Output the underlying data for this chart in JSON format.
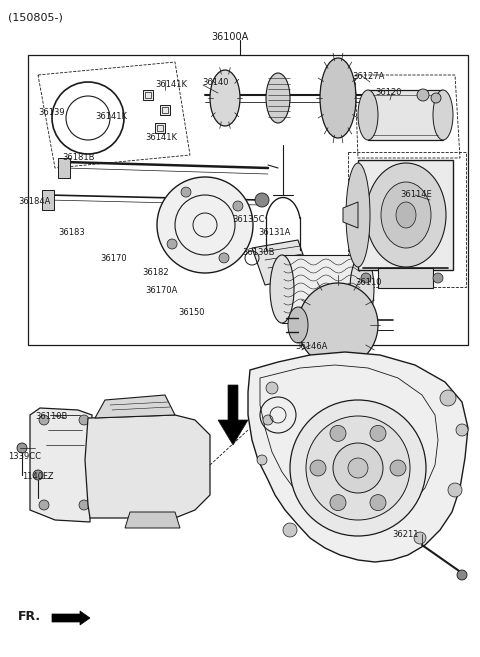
{
  "bg_color": "#ffffff",
  "lc": "#1a1a1a",
  "figsize": [
    4.8,
    6.57
  ],
  "dpi": 100,
  "title": "(150805-)",
  "top_label": "36100A",
  "part_labels": [
    [
      "36141K",
      155,
      88
    ],
    [
      "36141K",
      118,
      118
    ],
    [
      "36141K",
      148,
      138
    ],
    [
      "36139",
      88,
      112
    ],
    [
      "36181B",
      78,
      158
    ],
    [
      "36184A",
      40,
      200
    ],
    [
      "36183",
      72,
      228
    ],
    [
      "36170",
      112,
      252
    ],
    [
      "36182",
      148,
      268
    ],
    [
      "36170A",
      148,
      285
    ],
    [
      "36150",
      188,
      308
    ],
    [
      "36140",
      210,
      85
    ],
    [
      "36135C",
      238,
      218
    ],
    [
      "36131A",
      262,
      230
    ],
    [
      "36130B",
      248,
      248
    ],
    [
      "36146A",
      300,
      315
    ],
    [
      "36127A",
      360,
      78
    ],
    [
      "36120",
      382,
      95
    ],
    [
      "36114E",
      400,
      195
    ],
    [
      "36110",
      368,
      240
    ],
    [
      "36110B",
      60,
      420
    ],
    [
      "1339CC",
      18,
      455
    ],
    [
      "1140FZ",
      32,
      475
    ],
    [
      "36211",
      398,
      530
    ]
  ]
}
